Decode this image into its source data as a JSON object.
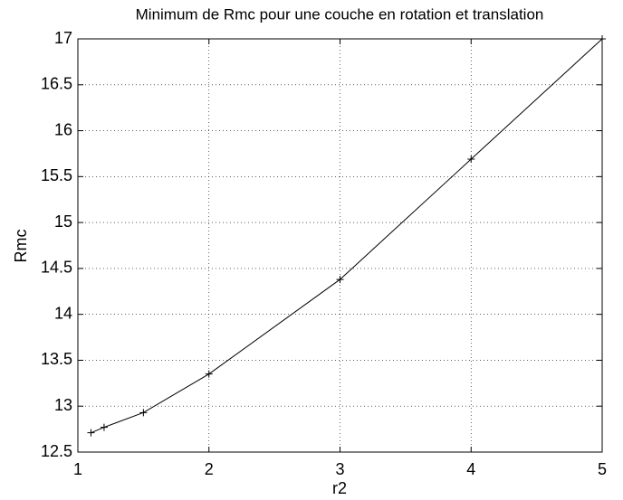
{
  "chart_data": {
    "type": "line",
    "title": "Minimum de Rmc pour une couche en rotation et translation",
    "x_label": "r2",
    "y_label": "Rmc",
    "x": [
      1.1,
      1.2,
      1.5,
      2,
      3,
      4,
      5
    ],
    "series": [
      {
        "color": "#000000",
        "marker": "+",
        "values": [
          12.71,
          12.77,
          12.93,
          13.35,
          14.38,
          15.69,
          17
        ]
      }
    ],
    "xlim": [
      1,
      5
    ],
    "xticks": [
      1,
      2,
      3,
      4,
      5
    ],
    "ylim": [
      12.5,
      17
    ],
    "yticks": [
      12.5,
      13,
      13.5,
      14,
      14.5,
      15,
      15.5,
      16,
      16.5,
      17
    ],
    "grid": true
  }
}
